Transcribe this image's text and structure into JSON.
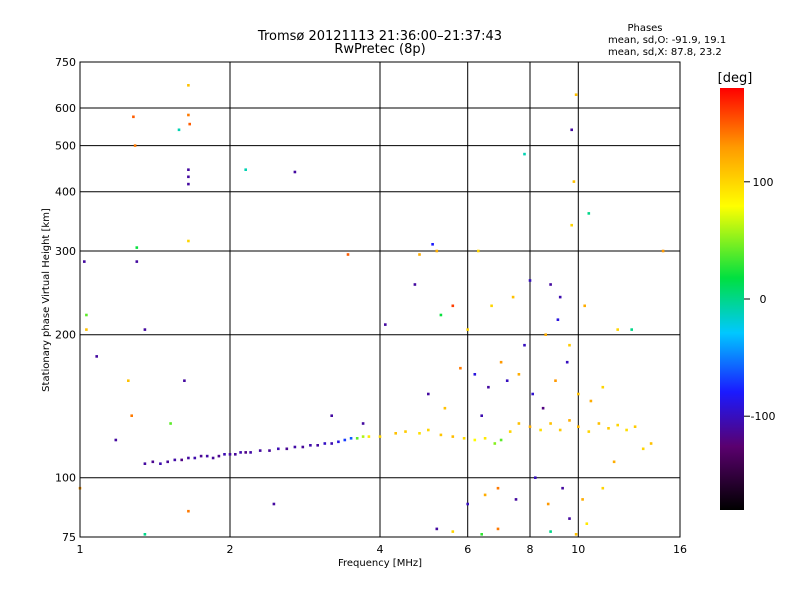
{
  "chart_data": {
    "type": "scatter",
    "title": "Tromsø 20121113 21:36:00–21:37:43",
    "subtitle": "RwPretec (8p)",
    "xlabel": "Frequency [MHz]",
    "ylabel": "Stationary phase Virtual Height [km]",
    "x_scale": "log",
    "y_scale": "log",
    "xlim": [
      1,
      16
    ],
    "ylim": [
      75,
      750
    ],
    "x_ticks": [
      1,
      2,
      4,
      6,
      8,
      10,
      16
    ],
    "x_tick_labels": [
      "1",
      "2",
      "4",
      "6",
      "8",
      "10",
      "16"
    ],
    "y_ticks": [
      75,
      100,
      200,
      300,
      400,
      500,
      600,
      750
    ],
    "y_tick_labels": [
      "75",
      "100",
      "200",
      "300",
      "400",
      "500",
      "600",
      "750"
    ],
    "grid": true,
    "stats": {
      "heading": "Phases",
      "line_o": "mean, sd,O: -91.9, 19.1",
      "line_x": "mean, sd,X: 87.8, 23.2"
    },
    "colorbar": {
      "label": "[deg]",
      "range": [
        -180,
        180
      ],
      "ticks": [
        100,
        0,
        -100
      ],
      "tick_labels": [
        "100",
        "0",
        "-100"
      ]
    },
    "series": [
      {
        "name": "echoes",
        "points": [
          [
            1.35,
            107,
            -110
          ],
          [
            1.4,
            108,
            -115
          ],
          [
            1.45,
            107,
            -105
          ],
          [
            1.5,
            108,
            -112
          ],
          [
            1.55,
            109,
            -108
          ],
          [
            1.6,
            109,
            -118
          ],
          [
            1.65,
            110,
            -110
          ],
          [
            1.7,
            110,
            -106
          ],
          [
            1.75,
            111,
            -114
          ],
          [
            1.8,
            111,
            -108
          ],
          [
            1.85,
            110,
            -112
          ],
          [
            1.9,
            111,
            -116
          ],
          [
            1.95,
            112,
            -104
          ],
          [
            2.0,
            112,
            -110
          ],
          [
            2.05,
            112,
            -112
          ],
          [
            2.1,
            113,
            -106
          ],
          [
            2.15,
            113,
            -118
          ],
          [
            2.2,
            113,
            -108
          ],
          [
            2.3,
            114,
            -110
          ],
          [
            2.4,
            114,
            -112
          ],
          [
            2.5,
            115,
            -104
          ],
          [
            2.6,
            115,
            -114
          ],
          [
            2.7,
            116,
            -108
          ],
          [
            2.8,
            116,
            -112
          ],
          [
            2.9,
            117,
            -106
          ],
          [
            3.0,
            117,
            -110
          ],
          [
            3.1,
            118,
            -98
          ],
          [
            3.2,
            118,
            -104
          ],
          [
            3.3,
            119,
            -90
          ],
          [
            3.4,
            120,
            -70
          ],
          [
            3.5,
            121,
            -60
          ],
          [
            3.6,
            121,
            40
          ],
          [
            3.7,
            122,
            60
          ],
          [
            3.8,
            122,
            90
          ],
          [
            4.0,
            122,
            100
          ],
          [
            4.3,
            124,
            110
          ],
          [
            4.5,
            125,
            105
          ],
          [
            4.8,
            124,
            95
          ],
          [
            5.0,
            126,
            100
          ],
          [
            5.3,
            123,
            108
          ],
          [
            5.6,
            122,
            112
          ],
          [
            5.9,
            121,
            96
          ],
          [
            6.2,
            120,
            80
          ],
          [
            6.5,
            121,
            90
          ],
          [
            6.8,
            118,
            50
          ],
          [
            7.0,
            120,
            40
          ],
          [
            7.3,
            125,
            100
          ],
          [
            7.6,
            130,
            110
          ],
          [
            8.0,
            128,
            120
          ],
          [
            8.4,
            126,
            95
          ],
          [
            8.8,
            130,
            110
          ],
          [
            9.2,
            126,
            105
          ],
          [
            9.6,
            132,
            120
          ],
          [
            10.0,
            128,
            115
          ],
          [
            10.5,
            125,
            100
          ],
          [
            11.0,
            130,
            110
          ],
          [
            11.5,
            127,
            105
          ],
          [
            12.0,
            129,
            100
          ],
          [
            12.5,
            126,
            95
          ],
          [
            13.0,
            128,
            105
          ],
          [
            5.8,
            170,
            140
          ],
          [
            6.2,
            165,
            -90
          ],
          [
            6.6,
            155,
            -110
          ],
          [
            7.2,
            160,
            -100
          ],
          [
            7.6,
            165,
            120
          ],
          [
            8.1,
            150,
            -95
          ],
          [
            8.5,
            140,
            -120
          ],
          [
            9.0,
            160,
            130
          ],
          [
            9.5,
            175,
            -100
          ],
          [
            10.0,
            150,
            110
          ],
          [
            10.6,
            145,
            120
          ],
          [
            11.2,
            155,
            100
          ],
          [
            5.0,
            150,
            -110
          ],
          [
            5.4,
            140,
            110
          ],
          [
            6.4,
            135,
            -105
          ],
          [
            7.0,
            175,
            130
          ],
          [
            7.8,
            190,
            -100
          ],
          [
            8.6,
            200,
            120
          ],
          [
            9.1,
            215,
            -90
          ],
          [
            9.6,
            190,
            105
          ],
          [
            10.3,
            230,
            120
          ],
          [
            6.7,
            230,
            100
          ],
          [
            7.4,
            240,
            110
          ],
          [
            8.0,
            260,
            -100
          ],
          [
            8.8,
            255,
            -110
          ],
          [
            9.2,
            240,
            -105
          ],
          [
            5.2,
            300,
            120
          ],
          [
            6.3,
            300,
            100
          ],
          [
            7.8,
            480,
            -10
          ],
          [
            9.7,
            540,
            -110
          ],
          [
            9.9,
            640,
            110
          ],
          [
            9.8,
            420,
            110
          ],
          [
            10.5,
            360,
            0
          ],
          [
            9.7,
            340,
            100
          ],
          [
            12.8,
            205,
            0
          ],
          [
            14.8,
            300,
            130
          ],
          [
            4.1,
            210,
            -110
          ],
          [
            4.7,
            255,
            -110
          ],
          [
            5.1,
            310,
            -80
          ],
          [
            4.8,
            295,
            120
          ],
          [
            5.3,
            220,
            20
          ],
          [
            5.6,
            230,
            160
          ],
          [
            6.0,
            205,
            100
          ],
          [
            6.9,
            95,
            140
          ],
          [
            7.5,
            90,
            -110
          ],
          [
            8.2,
            100,
            -100
          ],
          [
            8.7,
            88,
            130
          ],
          [
            9.3,
            95,
            -110
          ],
          [
            10.2,
            90,
            120
          ],
          [
            9.6,
            82,
            -110
          ],
          [
            10.4,
            80,
            90
          ],
          [
            6.0,
            88,
            -100
          ],
          [
            6.5,
            92,
            120
          ],
          [
            5.2,
            78,
            -110
          ],
          [
            5.6,
            77,
            100
          ],
          [
            6.4,
            76,
            30
          ],
          [
            6.9,
            78,
            140
          ],
          [
            8.8,
            77,
            0
          ],
          [
            9.9,
            76,
            110
          ],
          [
            11.2,
            95,
            100
          ],
          [
            11.8,
            108,
            120
          ],
          [
            13.5,
            115,
            100
          ],
          [
            14.0,
            118,
            110
          ],
          [
            1.0,
            95,
            130
          ],
          [
            1.02,
            285,
            -110
          ],
          [
            1.03,
            220,
            40
          ],
          [
            1.03,
            205,
            110
          ],
          [
            1.08,
            180,
            -110
          ],
          [
            1.18,
            120,
            -110
          ],
          [
            1.25,
            160,
            110
          ],
          [
            1.27,
            135,
            140
          ],
          [
            1.28,
            575,
            150
          ],
          [
            1.29,
            500,
            140
          ],
          [
            1.3,
            305,
            20
          ],
          [
            1.3,
            285,
            -110
          ],
          [
            1.35,
            205,
            -110
          ],
          [
            1.52,
            130,
            40
          ],
          [
            1.58,
            540,
            -10
          ],
          [
            1.62,
            160,
            -110
          ],
          [
            1.65,
            670,
            110
          ],
          [
            1.65,
            580,
            140
          ],
          [
            1.66,
            555,
            150
          ],
          [
            1.65,
            445,
            -110
          ],
          [
            1.65,
            430,
            -110
          ],
          [
            1.65,
            415,
            -110
          ],
          [
            1.65,
            315,
            100
          ],
          [
            1.65,
            85,
            140
          ],
          [
            1.35,
            76,
            0
          ],
          [
            2.15,
            445,
            -10
          ],
          [
            2.7,
            440,
            -110
          ],
          [
            2.45,
            88,
            -110
          ],
          [
            3.45,
            295,
            150
          ],
          [
            3.2,
            135,
            -110
          ],
          [
            3.7,
            130,
            -110
          ],
          [
            12.0,
            205,
            100
          ]
        ]
      }
    ]
  }
}
